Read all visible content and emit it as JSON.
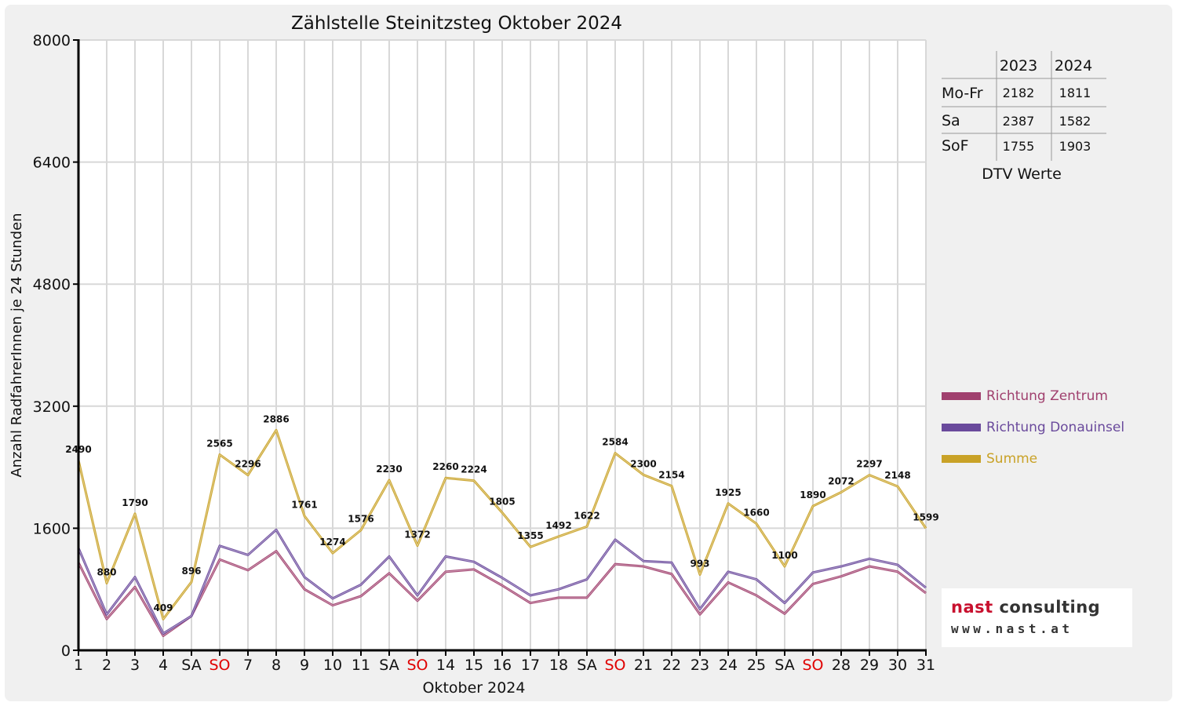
{
  "colors": {
    "zentrum": "#a0406e",
    "donauinsel": "#6a4a9c",
    "summe": "#c9a227",
    "sunday": "#e00000",
    "frame": "#f0f0f0"
  },
  "chart_data": {
    "type": "line",
    "title": "Zählstelle Steinitzsteg Oktober 2024",
    "xlabel": "Oktober 2024",
    "ylabel": "Anzahl RadfahrerInnen je 24 Stunden",
    "ylim": [
      0,
      8000
    ],
    "yticks": [
      0,
      1600,
      3200,
      4800,
      6400,
      8000
    ],
    "grid": true,
    "legend_position": "right",
    "categories": [
      "1",
      "2",
      "3",
      "4",
      "SA",
      "SO",
      "7",
      "8",
      "9",
      "10",
      "11",
      "SA",
      "SO",
      "14",
      "15",
      "16",
      "17",
      "18",
      "SA",
      "SO",
      "21",
      "22",
      "23",
      "24",
      "25",
      "SA",
      "SO",
      "28",
      "29",
      "30",
      "31"
    ],
    "category_is_sunday": [
      false,
      false,
      false,
      false,
      false,
      true,
      false,
      false,
      false,
      false,
      false,
      false,
      true,
      false,
      false,
      false,
      false,
      false,
      false,
      true,
      false,
      false,
      false,
      false,
      false,
      false,
      true,
      false,
      false,
      false,
      false
    ],
    "series": [
      {
        "name": "Richtung Zentrum",
        "color_key": "zentrum",
        "values": [
          1150,
          410,
          830,
          190,
          450,
          1190,
          1050,
          1300,
          800,
          590,
          710,
          1010,
          650,
          1030,
          1060,
          850,
          620,
          690,
          690,
          1130,
          1100,
          1000,
          470,
          890,
          720,
          480,
          870,
          970,
          1100,
          1030,
          750
        ]
      },
      {
        "name": "Richtung Donauinsel",
        "color_key": "donauinsel",
        "values": [
          1340,
          470,
          960,
          220,
          450,
          1370,
          1250,
          1580,
          960,
          680,
          860,
          1230,
          720,
          1230,
          1160,
          950,
          720,
          800,
          930,
          1450,
          1170,
          1150,
          540,
          1030,
          930,
          620,
          1020,
          1100,
          1200,
          1120,
          820
        ]
      },
      {
        "name": "Summe",
        "color_key": "summe",
        "values": [
          2490,
          880,
          1790,
          409,
          896,
          2565,
          2296,
          2886,
          1761,
          1274,
          1576,
          2230,
          1372,
          2260,
          2224,
          1805,
          1355,
          1492,
          1622,
          2584,
          2300,
          2154,
          993,
          1925,
          1660,
          1100,
          1890,
          2072,
          2297,
          2148,
          1599
        ],
        "labeled": true
      }
    ]
  },
  "dtv_table": {
    "columns": [
      "2023",
      "2024"
    ],
    "rows": [
      {
        "label": "Mo-Fr",
        "values": [
          "2182",
          "1811"
        ]
      },
      {
        "label": "Sa",
        "values": [
          "2387",
          "1582"
        ]
      },
      {
        "label": "SoF",
        "values": [
          "1755",
          "1903"
        ]
      }
    ],
    "caption": "DTV Werte"
  },
  "logo": {
    "word1": "nast",
    "word2": " consulting",
    "url": "www.nast.at"
  }
}
